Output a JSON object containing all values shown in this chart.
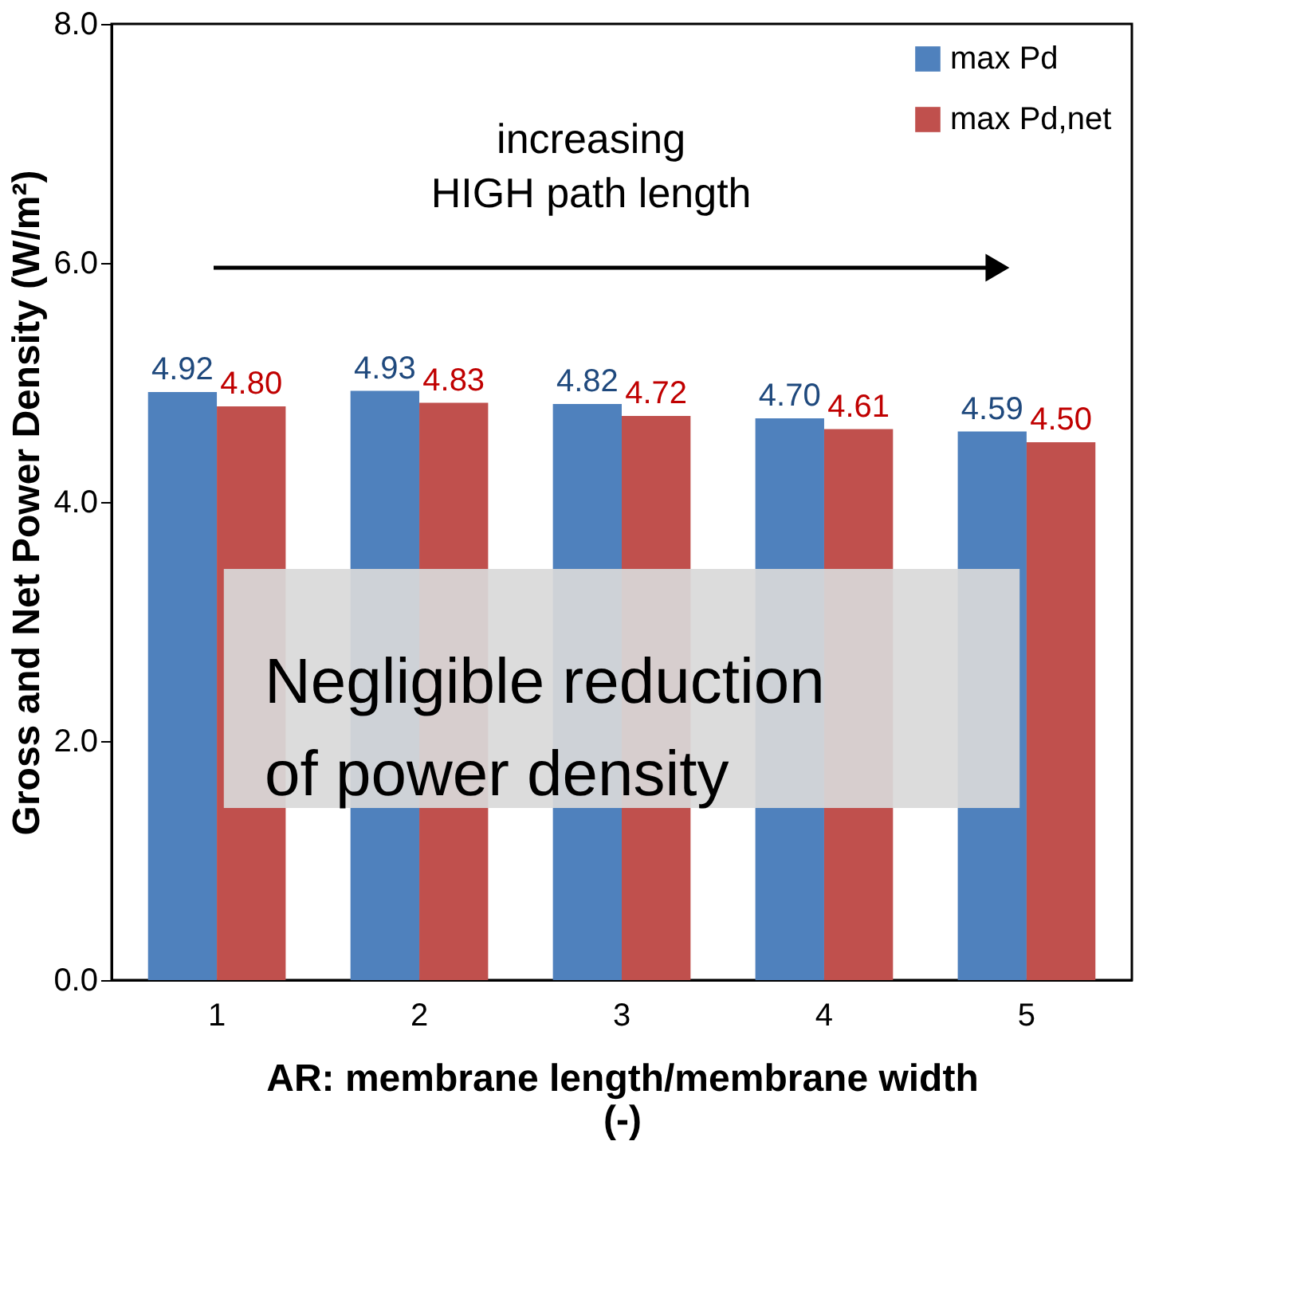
{
  "chart_data": {
    "type": "bar",
    "xlabel": "AR: membrane length/membrane width (-)",
    "ylabel": "Gross and Net Power Density (W/m²)",
    "categories": [
      "1",
      "2",
      "3",
      "4",
      "5"
    ],
    "series": [
      {
        "name": "max Pd",
        "color": "#4f81bd",
        "values": [
          4.92,
          4.93,
          4.82,
          4.7,
          4.59
        ],
        "value_labels": [
          "4.92",
          "4.93",
          "4.82",
          "4.70",
          "4.59"
        ]
      },
      {
        "name": "max Pd,net",
        "color": "#c0504d",
        "values": [
          4.8,
          4.83,
          4.72,
          4.61,
          4.5
        ],
        "value_labels": [
          "4.80",
          "4.83",
          "4.72",
          "4.61",
          "4.50"
        ]
      }
    ],
    "ylim": [
      0,
      8
    ],
    "yticks": [
      {
        "value": 0,
        "label": "0.0"
      },
      {
        "value": 2,
        "label": "2.0"
      },
      {
        "value": 4,
        "label": "4.0"
      },
      {
        "value": 6,
        "label": "6.0"
      },
      {
        "value": 8,
        "label": "8.0"
      }
    ],
    "legend": "top right",
    "grid": false,
    "annotations": [
      "increasing\nHIGH path length",
      "Negligible reduction\nof power density"
    ]
  }
}
